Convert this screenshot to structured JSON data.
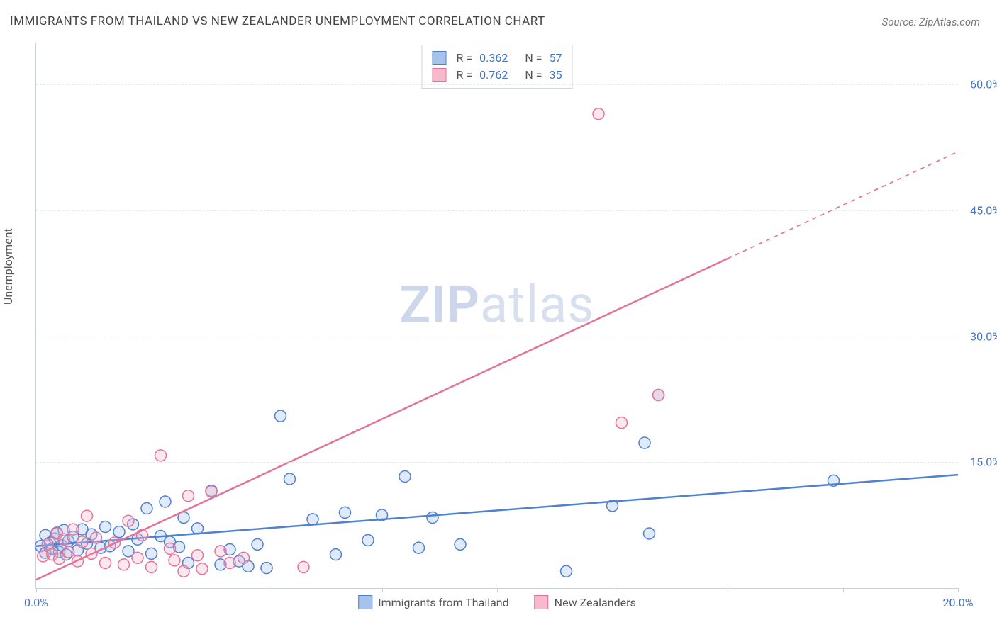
{
  "title": "IMMIGRANTS FROM THAILAND VS NEW ZEALANDER UNEMPLOYMENT CORRELATION CHART",
  "source": "Source: ZipAtlas.com",
  "ylabel": "Unemployment",
  "watermark_bold": "ZIP",
  "watermark_rest": "atlas",
  "chart": {
    "type": "scatter",
    "x_min": 0.0,
    "x_max": 20.0,
    "y_min": 0.0,
    "y_max": 65.0,
    "y_ticks": [
      15.0,
      30.0,
      45.0,
      60.0
    ],
    "y_tick_labels": [
      "15.0%",
      "30.0%",
      "45.0%",
      "60.0%"
    ],
    "x_ticks": [
      0.0,
      2.5,
      5.0,
      7.5,
      10.0,
      12.5,
      15.0,
      17.5,
      20.0
    ],
    "x_tick_labels_shown": {
      "0.0": "0.0%",
      "20.0": "20.0%"
    },
    "background_color": "#ffffff",
    "grid_color": "#e6e8ee",
    "axis_color": "#ccd0d8",
    "tick_label_color": "#4472c4",
    "title_color": "#444444",
    "point_radius": 8,
    "point_stroke_width": 1.5,
    "point_fill_opacity": 0.35,
    "line_width": 2.5,
    "series": [
      {
        "name": "Immigrants from Thailand",
        "color_stroke": "#4f81d1",
        "color_fill": "#a8c3eb",
        "r_value": "0.362",
        "n_value": "57",
        "trend": {
          "x1": 0.0,
          "y1": 5.0,
          "x2": 20.0,
          "y2": 13.5,
          "dash_after_x": 20.0
        },
        "points": [
          [
            0.1,
            5.0
          ],
          [
            0.2,
            4.2
          ],
          [
            0.2,
            6.3
          ],
          [
            0.3,
            5.4
          ],
          [
            0.35,
            4.7
          ],
          [
            0.4,
            5.9
          ],
          [
            0.45,
            6.6
          ],
          [
            0.5,
            4.3
          ],
          [
            0.55,
            5.1
          ],
          [
            0.6,
            6.9
          ],
          [
            0.65,
            4.0
          ],
          [
            0.7,
            5.6
          ],
          [
            0.8,
            6.1
          ],
          [
            0.9,
            4.5
          ],
          [
            1.0,
            7.0
          ],
          [
            1.1,
            5.3
          ],
          [
            1.2,
            6.4
          ],
          [
            1.4,
            4.8
          ],
          [
            1.5,
            7.3
          ],
          [
            1.6,
            5.0
          ],
          [
            1.8,
            6.7
          ],
          [
            2.0,
            4.4
          ],
          [
            2.1,
            7.6
          ],
          [
            2.2,
            5.8
          ],
          [
            2.4,
            9.5
          ],
          [
            2.5,
            4.1
          ],
          [
            2.7,
            6.2
          ],
          [
            2.8,
            10.3
          ],
          [
            2.9,
            5.5
          ],
          [
            3.1,
            4.9
          ],
          [
            3.2,
            8.4
          ],
          [
            3.3,
            3.0
          ],
          [
            3.5,
            7.1
          ],
          [
            3.8,
            11.6
          ],
          [
            4.0,
            2.8
          ],
          [
            4.2,
            4.6
          ],
          [
            4.4,
            3.2
          ],
          [
            4.6,
            2.6
          ],
          [
            4.8,
            5.2
          ],
          [
            5.0,
            2.4
          ],
          [
            5.3,
            20.5
          ],
          [
            5.5,
            13.0
          ],
          [
            6.0,
            8.2
          ],
          [
            6.5,
            4.0
          ],
          [
            6.7,
            9.0
          ],
          [
            7.2,
            5.7
          ],
          [
            7.5,
            8.7
          ],
          [
            8.0,
            13.3
          ],
          [
            8.3,
            4.8
          ],
          [
            8.6,
            8.4
          ],
          [
            9.2,
            5.2
          ],
          [
            11.5,
            2.0
          ],
          [
            12.5,
            9.8
          ],
          [
            13.2,
            17.3
          ],
          [
            13.3,
            6.5
          ],
          [
            13.5,
            23.0
          ],
          [
            17.3,
            12.8
          ]
        ]
      },
      {
        "name": "New Zealanders",
        "color_stroke": "#e57399",
        "color_fill": "#f6b9cd",
        "r_value": "0.762",
        "n_value": "35",
        "trend": {
          "x1": 0.0,
          "y1": 1.0,
          "x2": 20.0,
          "y2": 52.0,
          "dash_after_x": 15.0
        },
        "points": [
          [
            0.15,
            3.8
          ],
          [
            0.25,
            5.2
          ],
          [
            0.35,
            4.0
          ],
          [
            0.45,
            6.5
          ],
          [
            0.5,
            3.5
          ],
          [
            0.6,
            5.8
          ],
          [
            0.7,
            4.3
          ],
          [
            0.8,
            7.0
          ],
          [
            0.9,
            3.2
          ],
          [
            1.0,
            5.5
          ],
          [
            1.1,
            8.6
          ],
          [
            1.2,
            4.1
          ],
          [
            1.3,
            6.0
          ],
          [
            1.5,
            3.0
          ],
          [
            1.7,
            5.4
          ],
          [
            1.9,
            2.8
          ],
          [
            2.0,
            8.0
          ],
          [
            2.2,
            3.6
          ],
          [
            2.3,
            6.3
          ],
          [
            2.5,
            2.5
          ],
          [
            2.7,
            15.8
          ],
          [
            2.9,
            4.7
          ],
          [
            3.0,
            3.3
          ],
          [
            3.2,
            2.0
          ],
          [
            3.3,
            11.0
          ],
          [
            3.5,
            3.9
          ],
          [
            3.6,
            2.3
          ],
          [
            3.8,
            11.5
          ],
          [
            4.0,
            4.4
          ],
          [
            4.2,
            3.0
          ],
          [
            4.5,
            3.6
          ],
          [
            5.8,
            2.5
          ],
          [
            12.2,
            56.5
          ],
          [
            12.7,
            19.7
          ],
          [
            13.5,
            23.0
          ]
        ]
      }
    ],
    "legend_bottom": [
      {
        "label": "Immigrants from Thailand",
        "swatch_fill": "#a8c3eb",
        "swatch_stroke": "#4f81d1"
      },
      {
        "label": "New Zealanders",
        "swatch_fill": "#f6b9cd",
        "swatch_stroke": "#e57399"
      }
    ]
  }
}
